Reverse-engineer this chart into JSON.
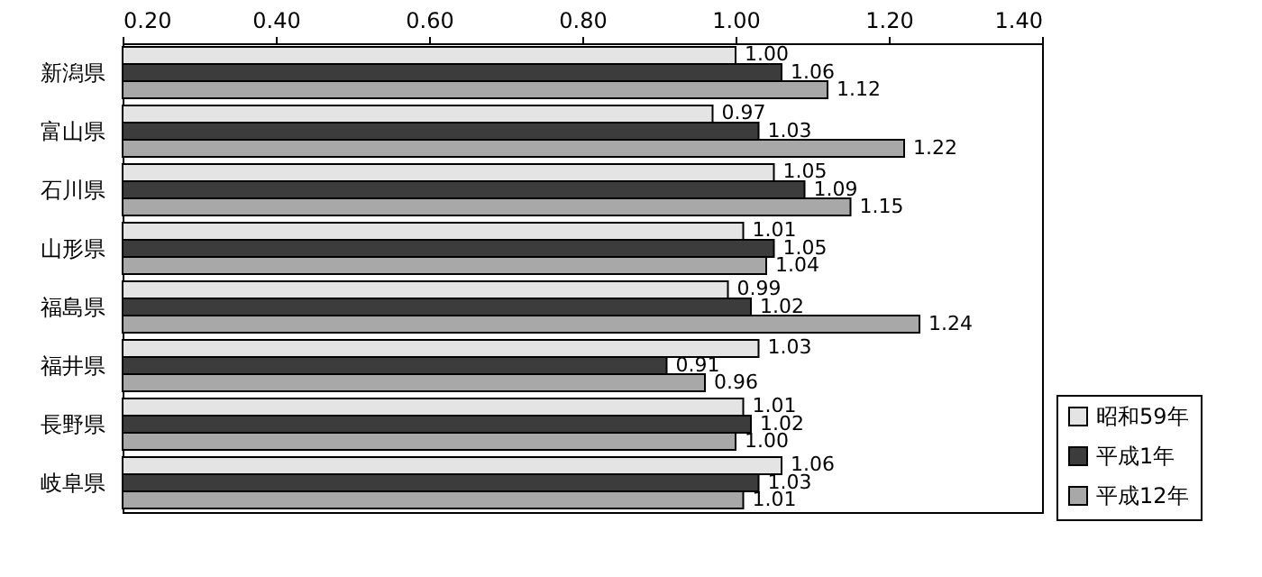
{
  "chart_data": {
    "type": "bar",
    "orientation": "horizontal",
    "categories": [
      "新潟県",
      "富山県",
      "石川県",
      "山形県",
      "福島県",
      "福井県",
      "長野県",
      "岐阜県"
    ],
    "series": [
      {
        "name": "昭和59年",
        "color": "#e4e4e4",
        "values": [
          1.0,
          0.97,
          1.05,
          1.01,
          0.99,
          1.03,
          1.01,
          1.06
        ],
        "value_labels": [
          "1.00",
          "0.97",
          "1.05",
          "1.01",
          "0.99",
          "1.03",
          "1.01",
          "1.06"
        ]
      },
      {
        "name": "平成1年",
        "color": "#3c3c3c",
        "values": [
          1.06,
          1.03,
          1.09,
          1.05,
          1.02,
          0.91,
          1.02,
          1.03
        ],
        "value_labels": [
          "1.06",
          "1.03",
          "1.09",
          "1.05",
          "1.02",
          "0.91",
          "1.02",
          "1.03"
        ]
      },
      {
        "name": "平成12年",
        "color": "#a8a8a8",
        "values": [
          1.12,
          1.22,
          1.15,
          1.04,
          1.24,
          0.96,
          1.0,
          1.01
        ],
        "value_labels": [
          "1.12",
          "1.22",
          "1.15",
          "1.04",
          "1.24",
          "0.96",
          "1.00",
          "1.01"
        ]
      }
    ],
    "xlim": [
      0.2,
      1.4
    ],
    "xticks": [
      {
        "value": 0.2,
        "label": "0.20"
      },
      {
        "value": 0.4,
        "label": "0.40"
      },
      {
        "value": 0.6,
        "label": "0.60"
      },
      {
        "value": 0.8,
        "label": "0.80"
      },
      {
        "value": 1.0,
        "label": "1.00"
      },
      {
        "value": 1.2,
        "label": "1.20"
      },
      {
        "value": 1.4,
        "label": "1.40"
      }
    ],
    "grid": false,
    "legend": "bottom right"
  }
}
